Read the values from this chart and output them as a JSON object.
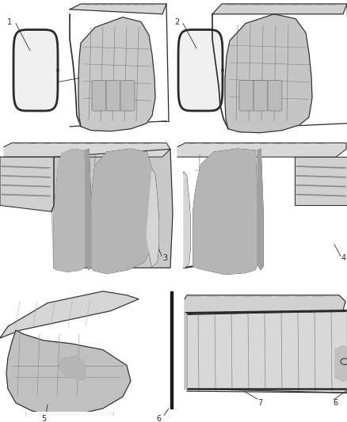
{
  "background_color": "#ffffff",
  "line_color": "#2a2a2a",
  "label_fontsize": 7,
  "fig_width": 4.38,
  "fig_height": 5.33,
  "dpi": 100,
  "gray_fill": "#e8e8e8",
  "dark_gray": "#555555",
  "mid_gray": "#999999",
  "light_gray": "#cccccc"
}
